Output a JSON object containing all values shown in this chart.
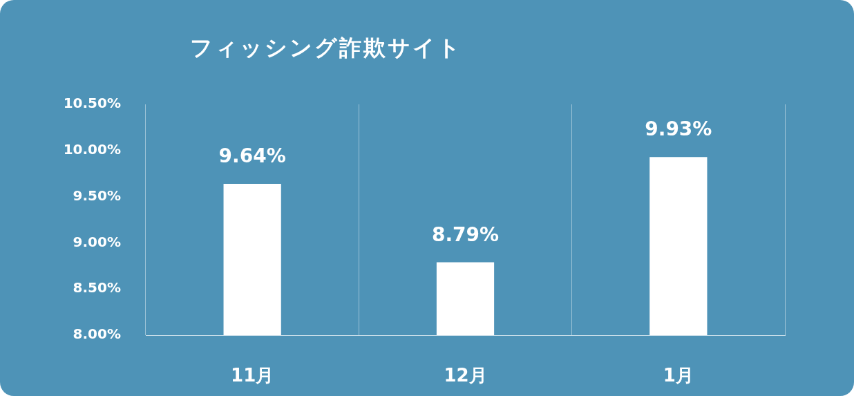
{
  "chart_data": {
    "type": "bar",
    "title": "フィッシング詐欺サイト",
    "categories": [
      "11月",
      "12月",
      "1月"
    ],
    "values": [
      9.64,
      8.79,
      9.93
    ],
    "color": "#ffffff",
    "value_labels": [
      "9.64%",
      "8.79%",
      "9.93%"
    ],
    "ylim": [
      8,
      10.5
    ],
    "yticks": [
      {
        "value": 8,
        "label": "8.00%"
      },
      {
        "value": 8.5,
        "label": "8.50%"
      },
      {
        "value": 9,
        "label": "9.00%"
      },
      {
        "value": 9.5,
        "label": "9.50%"
      },
      {
        "value": 10,
        "label": "10.00%"
      },
      {
        "value": 10.5,
        "label": "10.50%"
      }
    ],
    "grid": "x",
    "legend": false
  }
}
